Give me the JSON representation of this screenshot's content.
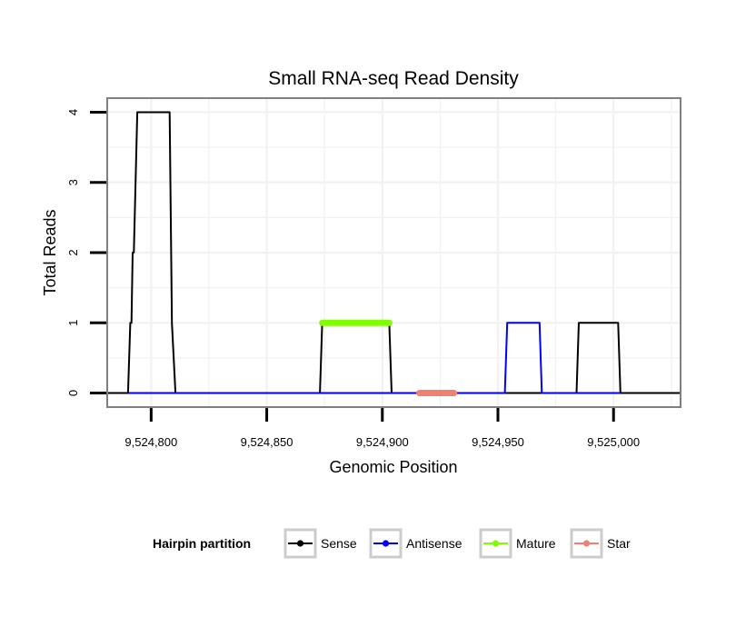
{
  "chart_data": {
    "type": "line",
    "title": "Small RNA-seq Read Density",
    "xlabel": "Genomic Position",
    "ylabel": "Total Reads",
    "xlim": [
      9524781,
      9525029
    ],
    "ylim": [
      -0.2,
      4.2
    ],
    "x_ticks": [
      9524800,
      9524850,
      9524900,
      9524950,
      9525000
    ],
    "x_tick_labels": [
      "9,524,800",
      "9,524,850",
      "9,524,900",
      "9,524,950",
      "9,525,000"
    ],
    "y_ticks": [
      0,
      1,
      2,
      3,
      4
    ],
    "y_tick_labels": [
      "0",
      "1",
      "2",
      "3",
      "4"
    ],
    "grid": true,
    "legend": {
      "title": "Hairpin partition",
      "position": "bottom",
      "entries": [
        {
          "name": "Sense",
          "color": "#000000"
        },
        {
          "name": "Antisense",
          "color": "#0000ff"
        },
        {
          "name": "Mature",
          "color": "#7fff00"
        },
        {
          "name": "Star",
          "color": "#f08070"
        }
      ]
    },
    "series": [
      {
        "name": "Sense",
        "color": "#000000",
        "x": [
          9524781,
          9524790,
          9524791,
          9524791.5,
          9524792,
          9524792.5,
          9524794,
          9524808,
          9524809,
          9524810.5,
          9524873,
          9524874,
          9524902,
          9524903,
          9524904,
          9524984,
          9524985,
          9525002,
          9525003,
          9525029
        ],
        "y": [
          0,
          0,
          1,
          1,
          2,
          2,
          4,
          4,
          1,
          0,
          0,
          1,
          1,
          1,
          0,
          0,
          1,
          1,
          0,
          0
        ]
      },
      {
        "name": "Antisense",
        "color": "#0000ff",
        "x": [
          9524790,
          9524810.5,
          9524873,
          9524904,
          9524953,
          9524954,
          9524968,
          9524969,
          9524984,
          9525003
        ],
        "y": [
          0,
          0,
          0,
          0,
          0,
          1,
          1,
          0,
          0,
          0
        ]
      },
      {
        "name": "Mature",
        "color": "#7fff00",
        "x": [
          9524874,
          9524903
        ],
        "y": [
          1,
          1
        ]
      },
      {
        "name": "Star",
        "color": "#f08070",
        "x": [
          9524916,
          9524931
        ],
        "y": [
          0,
          0
        ]
      }
    ]
  }
}
